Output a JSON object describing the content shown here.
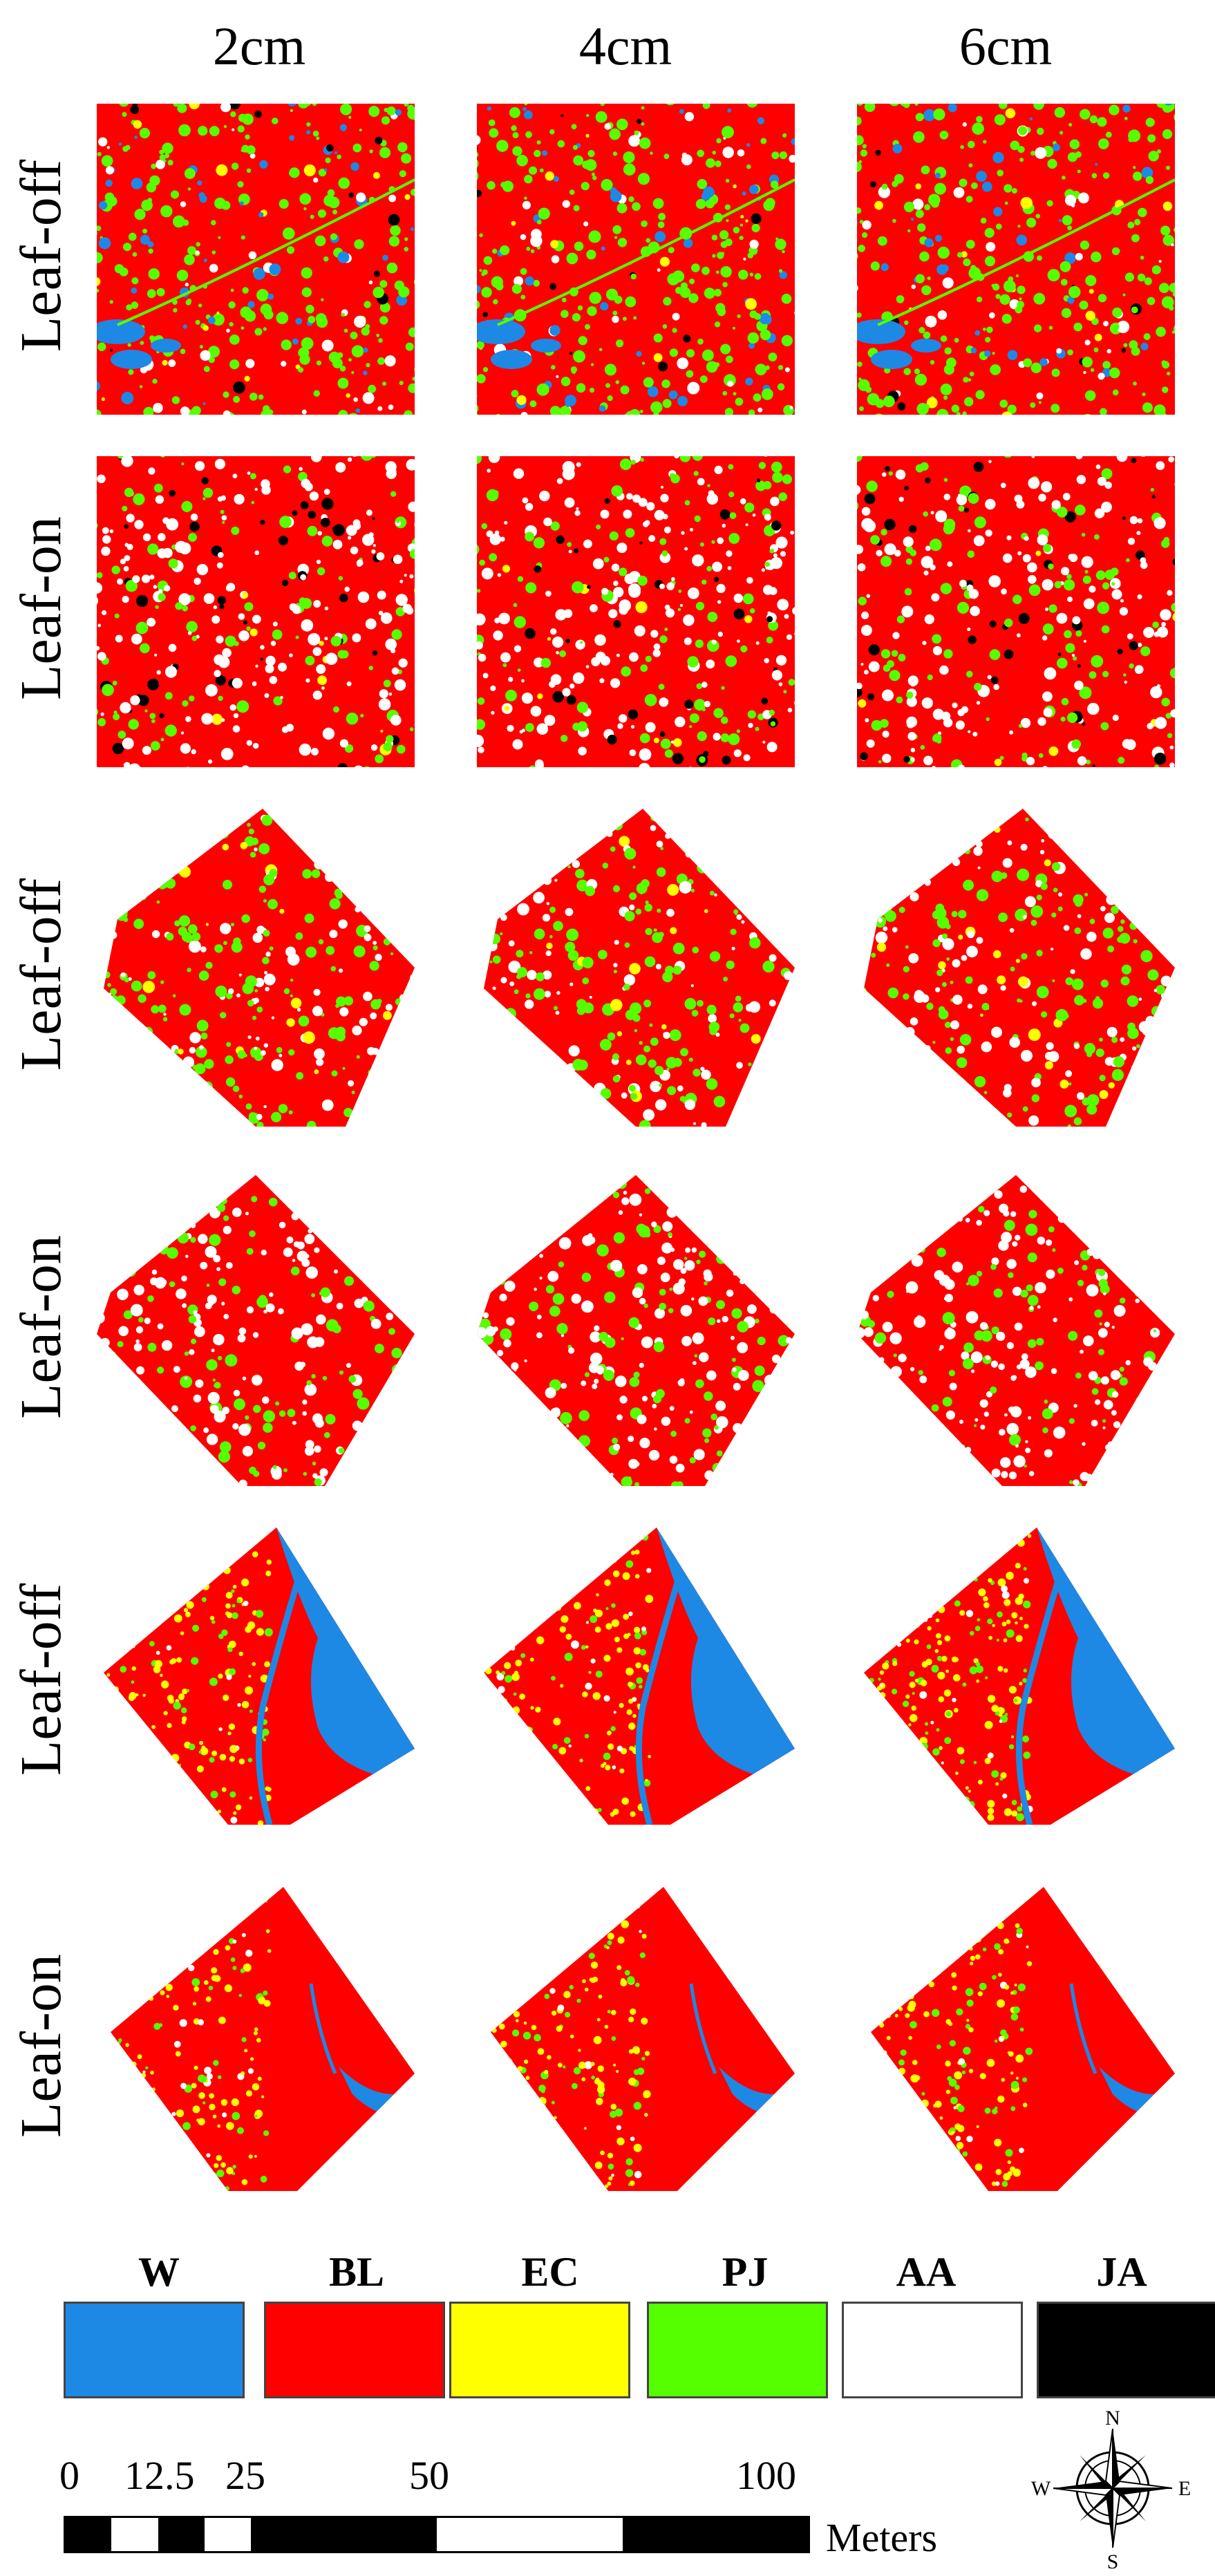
{
  "columns": [
    "2cm",
    "4cm",
    "6cm"
  ],
  "row_labels": [
    "Leaf-off",
    "Leaf-on",
    "Leaf-off",
    "Leaf-on",
    "Leaf-off",
    "Leaf-on"
  ],
  "legend": [
    {
      "code": "W",
      "color": "#1e88e5"
    },
    {
      "code": "BL",
      "color": "#ff0000"
    },
    {
      "code": "EC",
      "color": "#ffff00"
    },
    {
      "code": "PJ",
      "color": "#55ff00"
    },
    {
      "code": "AA",
      "color": "#ffffff"
    },
    {
      "code": "JA",
      "color": "#000000"
    }
  ],
  "scalebar": {
    "ticks": [
      "0",
      "12.5",
      "25",
      "50",
      "100"
    ],
    "unit": "Meters"
  },
  "compass": {
    "n": "N",
    "s": "S",
    "e": "E",
    "w": "W"
  }
}
